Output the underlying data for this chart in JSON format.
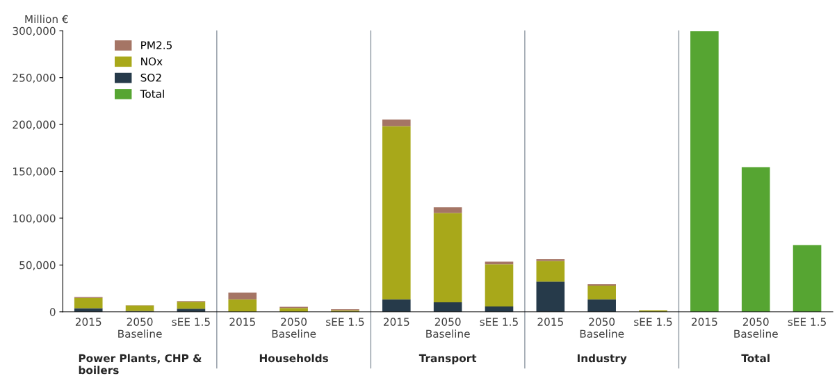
{
  "chart_data": {
    "type": "bar",
    "stacked": true,
    "ylabel": "Million €",
    "categories": [
      "2015",
      "2050\nBaseline",
      "sEE 1.5",
      "2015",
      "2050\nBaseline",
      "sEE 1.5",
      "2015",
      "2050\nBaseline",
      "sEE 1.5",
      "2015",
      "2050\nBaseline",
      "sEE 1.5",
      "2015",
      "2050\nBaseline",
      "sEE 1.5"
    ],
    "series": [
      {
        "name": "SO2",
        "color": "#263a4a",
        "values": [
          3900,
          1000,
          3400,
          null,
          null,
          null,
          13400,
          10100,
          5800,
          32300,
          13400,
          null,
          null,
          null,
          null
        ]
      },
      {
        "name": "NOx",
        "color": "#a8a81a",
        "values": [
          11000,
          5800,
          7300,
          13300,
          4000,
          1700,
          184800,
          95400,
          45000,
          22000,
          14600,
          1600,
          null,
          null,
          null
        ]
      },
      {
        "name": "PM2.5",
        "color": "#a57565",
        "values": [
          1000,
          300,
          800,
          7300,
          1300,
          1100,
          7100,
          6100,
          2700,
          1800,
          1500,
          null,
          null,
          null,
          null
        ]
      },
      {
        "name": "Total",
        "color": "#56a532",
        "values": [
          null,
          null,
          null,
          null,
          null,
          null,
          null,
          null,
          null,
          null,
          null,
          null,
          299500,
          154500,
          71200
        ]
      }
    ],
    "ylim": [
      0,
      300000
    ],
    "yticks": [
      {
        "value": 0,
        "label": "0"
      },
      {
        "value": 50000,
        "label": "50,000"
      },
      {
        "value": 100000,
        "label": "100,000"
      },
      {
        "value": 150000,
        "label": "150,000"
      },
      {
        "value": 200000,
        "label": "200,000"
      },
      {
        "value": 250000,
        "label": "250,000"
      },
      {
        "value": 300000,
        "label": "300,000"
      }
    ],
    "annotations": [
      "Power Plants, CHP &\nboilers",
      "Households",
      "Transport",
      "Industry",
      "Total"
    ],
    "legend": "top left",
    "grid": false
  }
}
